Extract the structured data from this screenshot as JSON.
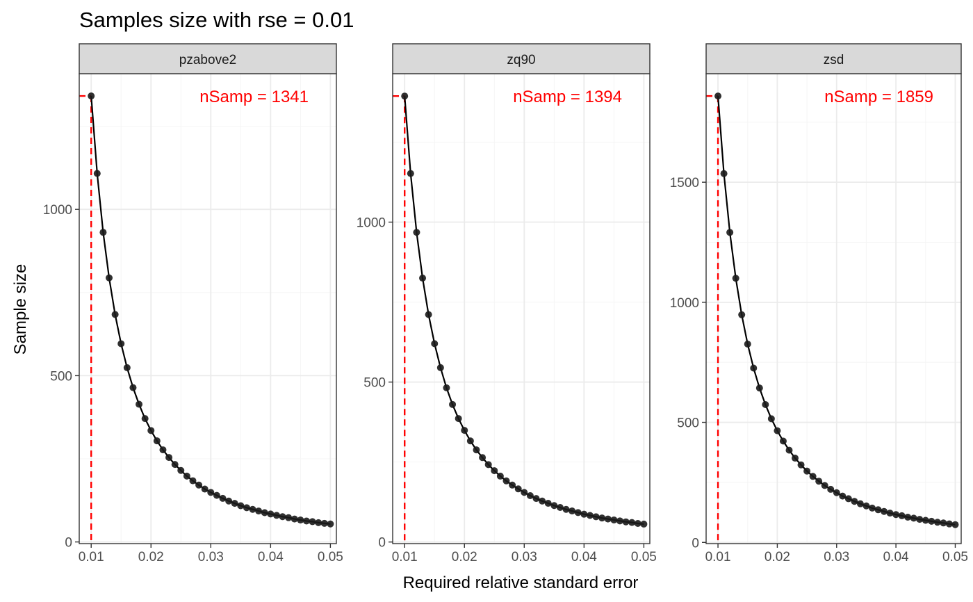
{
  "title": "Samples size with rse = 0.01",
  "xlabel": "Required relative standard error",
  "ylabel": "Sample size",
  "colors": {
    "strip_fill": "#D9D9D9",
    "panel_border": "#333333",
    "grid_major": "#EBEBEB",
    "grid_minor": "#F5F5F5",
    "line": "#000000",
    "point": "#1A1A1A",
    "highlight": "#FF0000",
    "axis_text": "#4D4D4D"
  },
  "chart_data": [
    {
      "type": "line",
      "facet": "pzabove2",
      "annotation": "nSamp = 1341",
      "highlight_x": 0.01,
      "highlight_y": 1341,
      "x": [
        0.01,
        0.011,
        0.012,
        0.013,
        0.014,
        0.015,
        0.016,
        0.017,
        0.018,
        0.019,
        0.02,
        0.021,
        0.022,
        0.023,
        0.024,
        0.025,
        0.026,
        0.027,
        0.028,
        0.029,
        0.03,
        0.031,
        0.032,
        0.033,
        0.034,
        0.035,
        0.036,
        0.037,
        0.038,
        0.039,
        0.04,
        0.041,
        0.042,
        0.043,
        0.044,
        0.045,
        0.046,
        0.047,
        0.048,
        0.049,
        0.05
      ],
      "y": [
        1341,
        1108,
        931,
        794,
        684,
        596,
        524,
        464,
        414,
        371,
        335,
        304,
        277,
        254,
        233,
        215,
        198,
        184,
        171,
        159,
        149,
        140,
        131,
        123,
        116,
        109,
        103,
        98,
        93,
        88,
        84,
        80,
        76,
        73,
        69,
        66,
        63,
        61,
        58,
        56,
        54
      ],
      "x_ticks": [
        0.01,
        0.02,
        0.03,
        0.04,
        0.05
      ],
      "x_tick_labels": [
        "0.01",
        "0.02",
        "0.03",
        "0.04",
        "0.05"
      ],
      "y_ticks": [
        0,
        500,
        1000
      ],
      "y_tick_labels": [
        "0",
        "500",
        "1000"
      ],
      "xlim": [
        0.008,
        0.051
      ],
      "ylim": [
        -5,
        1408
      ]
    },
    {
      "type": "line",
      "facet": "zq90",
      "annotation": "nSamp = 1394",
      "highlight_x": 0.01,
      "highlight_y": 1394,
      "x": [
        0.01,
        0.011,
        0.012,
        0.013,
        0.014,
        0.015,
        0.016,
        0.017,
        0.018,
        0.019,
        0.02,
        0.021,
        0.022,
        0.023,
        0.024,
        0.025,
        0.026,
        0.027,
        0.028,
        0.029,
        0.03,
        0.031,
        0.032,
        0.033,
        0.034,
        0.035,
        0.036,
        0.037,
        0.038,
        0.039,
        0.04,
        0.041,
        0.042,
        0.043,
        0.044,
        0.045,
        0.046,
        0.047,
        0.048,
        0.049,
        0.05
      ],
      "y": [
        1394,
        1152,
        968,
        825,
        711,
        620,
        545,
        482,
        430,
        386,
        349,
        316,
        288,
        264,
        242,
        223,
        206,
        191,
        178,
        166,
        155,
        145,
        136,
        128,
        121,
        114,
        108,
        102,
        97,
        92,
        87,
        83,
        79,
        75,
        72,
        69,
        66,
        63,
        61,
        58,
        56
      ],
      "x_ticks": [
        0.01,
        0.02,
        0.03,
        0.04,
        0.05
      ],
      "x_tick_labels": [
        "0.01",
        "0.02",
        "0.03",
        "0.04",
        "0.05"
      ],
      "y_ticks": [
        0,
        500,
        1000
      ],
      "y_tick_labels": [
        "0",
        "500",
        "1000"
      ],
      "xlim": [
        0.008,
        0.051
      ],
      "ylim": [
        -5,
        1464
      ]
    },
    {
      "type": "line",
      "facet": "zsd",
      "annotation": "nSamp = 1859",
      "highlight_x": 0.01,
      "highlight_y": 1859,
      "x": [
        0.01,
        0.011,
        0.012,
        0.013,
        0.014,
        0.015,
        0.016,
        0.017,
        0.018,
        0.019,
        0.02,
        0.021,
        0.022,
        0.023,
        0.024,
        0.025,
        0.026,
        0.027,
        0.028,
        0.029,
        0.03,
        0.031,
        0.032,
        0.033,
        0.034,
        0.035,
        0.036,
        0.037,
        0.038,
        0.039,
        0.04,
        0.041,
        0.042,
        0.043,
        0.044,
        0.045,
        0.046,
        0.047,
        0.048,
        0.049,
        0.05
      ],
      "y": [
        1859,
        1536,
        1291,
        1100,
        948,
        826,
        726,
        643,
        574,
        515,
        465,
        422,
        384,
        351,
        323,
        297,
        275,
        255,
        237,
        221,
        207,
        193,
        182,
        171,
        161,
        152,
        143,
        136,
        129,
        122,
        116,
        111,
        105,
        101,
        96,
        92,
        88,
        84,
        81,
        77,
        74
      ],
      "x_ticks": [
        0.01,
        0.02,
        0.03,
        0.04,
        0.05
      ],
      "x_tick_labels": [
        "0.01",
        "0.02",
        "0.03",
        "0.04",
        "0.05"
      ],
      "y_ticks": [
        0,
        500,
        1000,
        1500
      ],
      "y_tick_labels": [
        "0",
        "500",
        "1000",
        "1500"
      ],
      "xlim": [
        0.008,
        0.051
      ],
      "ylim": [
        -5,
        1952
      ]
    }
  ]
}
